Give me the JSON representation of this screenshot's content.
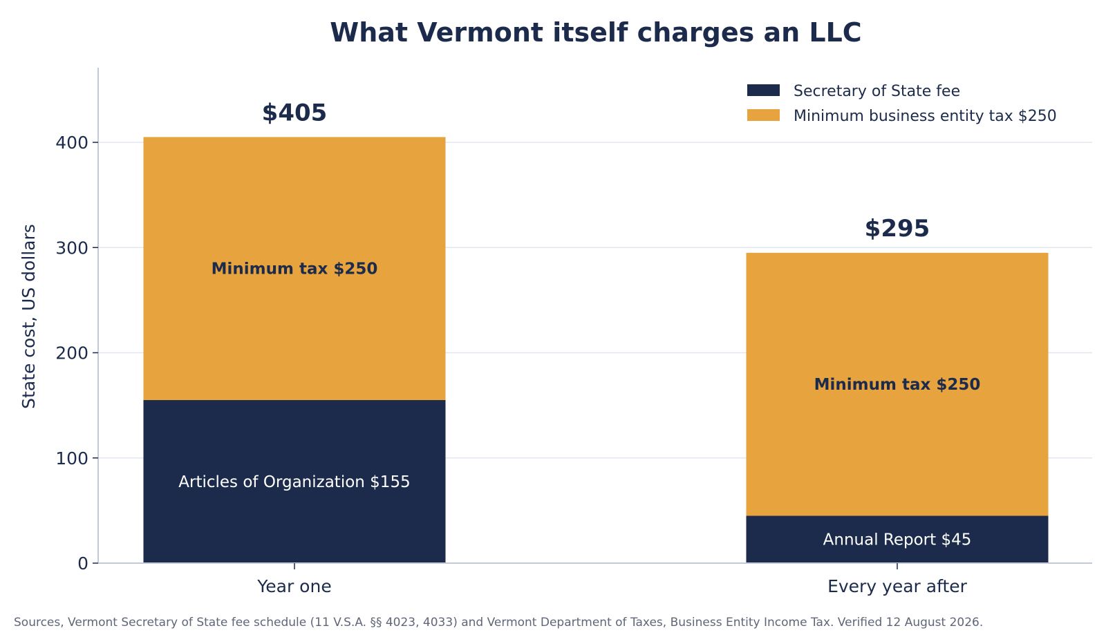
{
  "colors": {
    "navy": "#1c2b4b",
    "orange": "#e7a33d",
    "text": "#1c2b4b",
    "grid": "#e3e6ef",
    "axis": "#c4c9d8",
    "source": "#5f6678"
  },
  "chart_data": {
    "type": "bar",
    "stacked": true,
    "title": "What Vermont itself charges an LLC",
    "xlabel": "",
    "ylabel": "State cost, US dollars",
    "ylim": [
      0,
      470
    ],
    "yticks": [
      0,
      100,
      200,
      300,
      400
    ],
    "grid": true,
    "legend_position": "top-right",
    "categories": [
      "Year one",
      "Every year after"
    ],
    "series": [
      {
        "name": "Secretary of State fee",
        "color": "#1c2b4b",
        "values": [
          155,
          45
        ],
        "segment_labels": [
          "Articles of Organization $155",
          "Annual Report $45"
        ]
      },
      {
        "name": "Minimum business entity tax $250",
        "color": "#e7a33d",
        "values": [
          250,
          250
        ],
        "segment_labels": [
          "Minimum tax $250",
          "Minimum tax $250"
        ]
      }
    ],
    "totals": [
      405,
      295
    ],
    "total_labels": [
      "$405",
      "$295"
    ]
  },
  "footer": {
    "source": "Sources, Vermont Secretary of State fee schedule (11 V.S.A. §§ 4023, 4033) and Vermont Department of Taxes, Business Entity Income Tax. Verified 12 August 2026."
  }
}
